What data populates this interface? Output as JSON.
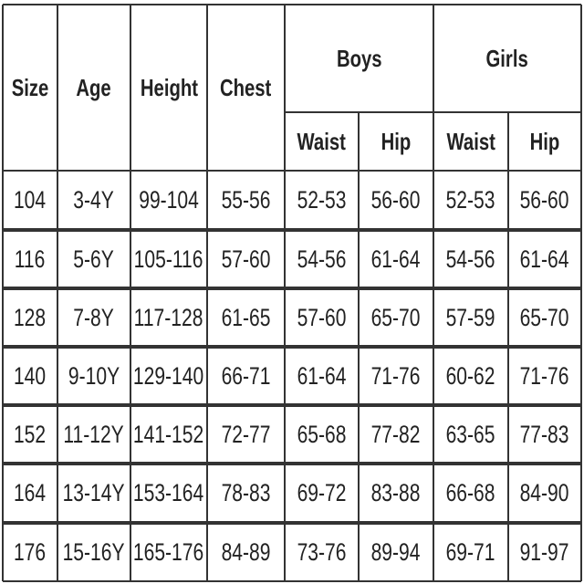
{
  "table": {
    "header": {
      "size": "Size",
      "age": "Age",
      "height": "Height",
      "chest": "Chest",
      "boys": "Boys",
      "girls": "Girls"
    },
    "subheader": [
      "Waist",
      "Hip",
      "Waist",
      "Hip"
    ],
    "rows": [
      [
        "104",
        "3-4Y",
        "99-104",
        "55-56",
        "52-53",
        "56-60",
        "52-53",
        "56-60"
      ],
      [
        "116",
        "5-6Y",
        "105-116",
        "57-60",
        "54-56",
        "61-64",
        "54-56",
        "61-64"
      ],
      [
        "128",
        "7-8Y",
        "117-128",
        "61-65",
        "57-60",
        "65-70",
        "57-59",
        "65-70"
      ],
      [
        "140",
        "9-10Y",
        "129-140",
        "66-71",
        "61-64",
        "71-76",
        "60-62",
        "71-76"
      ],
      [
        "152",
        "11-12Y",
        "141-152",
        "72-77",
        "65-68",
        "77-82",
        "63-65",
        "77-83"
      ],
      [
        "164",
        "13-14Y",
        "153-164",
        "78-83",
        "69-72",
        "83-88",
        "66-68",
        "84-90"
      ],
      [
        "176",
        "15-16Y",
        "165-176",
        "84-89",
        "73-76",
        "89-94",
        "69-71",
        "91-97"
      ]
    ]
  }
}
